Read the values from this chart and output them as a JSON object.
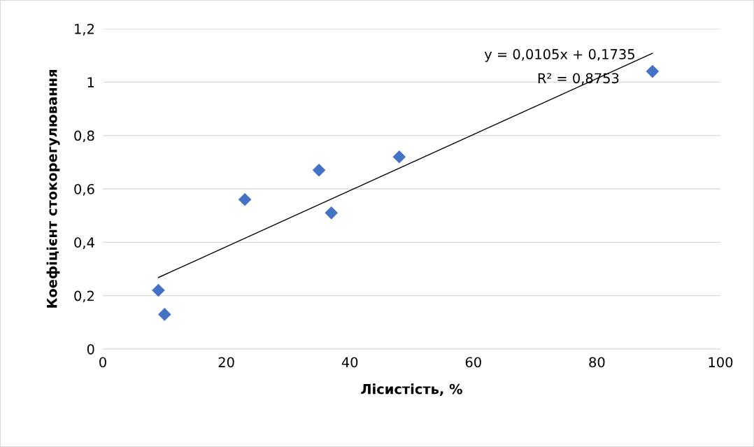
{
  "chart_data": {
    "type": "scatter",
    "xlabel": "Лісистість, %",
    "ylabel": "Коефіцієнт стокорегулювання",
    "grid": "y",
    "legend": false,
    "xlim": [
      0,
      100
    ],
    "xticks": [
      0,
      20,
      40,
      60,
      80,
      100
    ],
    "ylim": [
      0,
      1.2
    ],
    "yticks": [
      0,
      {
        "value": 0.2,
        "label": "0,2"
      },
      {
        "value": 0.4,
        "label": "0,4"
      },
      {
        "value": 0.6,
        "label": "0,6"
      },
      {
        "value": 0.8,
        "label": "0,8"
      },
      1,
      {
        "value": 1.2,
        "label": "1,2"
      }
    ],
    "series": [
      {
        "marker": "diamond",
        "color": "#4472c4",
        "x": [
          9,
          10,
          23,
          35,
          37,
          48,
          89
        ],
        "values": [
          0.22,
          0.13,
          0.56,
          0.67,
          0.51,
          0.72,
          1.04
        ]
      },
      {
        "type": "line",
        "color": "#000000",
        "x": [
          9,
          89
        ],
        "values": [
          0.268,
          1.108
        ]
      }
    ],
    "annotations": [
      "y = 0,0105x + 0,1735",
      "R² = 0,8753"
    ]
  }
}
